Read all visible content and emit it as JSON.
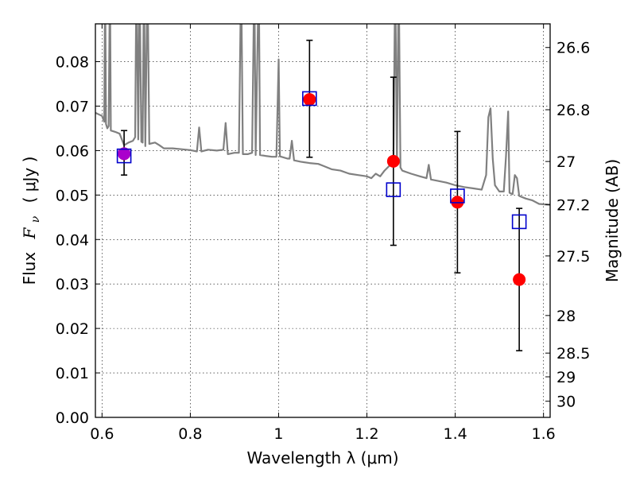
{
  "chart_data": {
    "type": "scatter",
    "xlabel": "Wavelength  λ (μm)",
    "ylabel_left_text": "Flux",
    "ylabel_left_symbol": "F",
    "ylabel_left_subscript": "ν",
    "ylabel_left_units": "( μJy )",
    "ylabel_right": "Magnitude (AB)",
    "xlim": [
      0.585,
      1.615
    ],
    "ylim": [
      0.0,
      0.0885
    ],
    "x_ticks": [
      0.6,
      0.8,
      1.0,
      1.2,
      1.4,
      1.6
    ],
    "x_tick_labels": [
      "0.6",
      "0.8",
      "1",
      "1.2",
      "1.4",
      "1.6"
    ],
    "y_ticks": [
      0.0,
      0.01,
      0.02,
      0.03,
      0.04,
      0.05,
      0.06,
      0.07,
      0.08
    ],
    "y_tick_labels": [
      "0.00",
      "0.01",
      "0.02",
      "0.03",
      "0.04",
      "0.05",
      "0.06",
      "0.07",
      "0.08"
    ],
    "right_ticks": [
      {
        "mag": 26.6,
        "label": "26.6"
      },
      {
        "mag": 26.8,
        "label": "26.8"
      },
      {
        "mag": 27.0,
        "label": "27"
      },
      {
        "mag": 27.2,
        "label": "27.2"
      },
      {
        "mag": 27.5,
        "label": "27.5"
      },
      {
        "mag": 28.0,
        "label": "28"
      },
      {
        "mag": 28.5,
        "label": "28.5"
      },
      {
        "mag": 29.0,
        "label": "29"
      },
      {
        "mag": 30.0,
        "label": "30"
      }
    ],
    "grid": true,
    "colors": {
      "observed": "#ff0000",
      "model": "#0000cc",
      "overlap": "#aa00cc",
      "spectrum": "#808080",
      "errorbar": "#000000"
    },
    "series": [
      {
        "kind": "observed_points_with_errors",
        "points": [
          {
            "x": 0.65,
            "y": 0.0593,
            "err_low": 0.0545,
            "err_high": 0.0645
          },
          {
            "x": 1.07,
            "y": 0.0715,
            "err_low": 0.0585,
            "err_high": 0.0848
          },
          {
            "x": 1.26,
            "y": 0.0576,
            "err_low": 0.0387,
            "err_high": 0.0765
          },
          {
            "x": 1.405,
            "y": 0.0484,
            "err_low": 0.0325,
            "err_high": 0.0643
          },
          {
            "x": 1.545,
            "y": 0.031,
            "err_low": 0.015,
            "err_high": 0.047
          }
        ]
      },
      {
        "kind": "model_photometry_squares",
        "points": [
          {
            "x": 0.65,
            "y": 0.0588
          },
          {
            "x": 1.07,
            "y": 0.0717
          },
          {
            "x": 1.26,
            "y": 0.0512
          },
          {
            "x": 1.405,
            "y": 0.0498
          },
          {
            "x": 1.545,
            "y": 0.044
          }
        ]
      },
      {
        "kind": "model_spectrum",
        "points": [
          [
            0.585,
            0.0685
          ],
          [
            0.6,
            0.0678
          ],
          [
            0.605,
            0.0665
          ],
          [
            0.607,
            0.1
          ],
          [
            0.609,
            0.066
          ],
          [
            0.612,
            0.065
          ],
          [
            0.615,
            0.0655
          ],
          [
            0.618,
            0.1
          ],
          [
            0.62,
            0.0645
          ],
          [
            0.63,
            0.0642
          ],
          [
            0.64,
            0.0638
          ],
          [
            0.65,
            0.0612
          ],
          [
            0.66,
            0.0618
          ],
          [
            0.67,
            0.0622
          ],
          [
            0.675,
            0.063
          ],
          [
            0.678,
            0.1
          ],
          [
            0.682,
            0.0625
          ],
          [
            0.685,
            0.1
          ],
          [
            0.689,
            0.062
          ],
          [
            0.692,
            0.0618
          ],
          [
            0.695,
            0.1
          ],
          [
            0.698,
            0.061
          ],
          [
            0.703,
            0.1
          ],
          [
            0.707,
            0.0615
          ],
          [
            0.72,
            0.0618
          ],
          [
            0.73,
            0.0612
          ],
          [
            0.74,
            0.0605
          ],
          [
            0.76,
            0.0605
          ],
          [
            0.78,
            0.0603
          ],
          [
            0.8,
            0.0601
          ],
          [
            0.815,
            0.0598
          ],
          [
            0.82,
            0.0652
          ],
          [
            0.825,
            0.0598
          ],
          [
            0.84,
            0.0602
          ],
          [
            0.86,
            0.06
          ],
          [
            0.875,
            0.0602
          ],
          [
            0.88,
            0.0662
          ],
          [
            0.885,
            0.0592
          ],
          [
            0.9,
            0.0595
          ],
          [
            0.91,
            0.0595
          ],
          [
            0.915,
            0.1
          ],
          [
            0.919,
            0.0592
          ],
          [
            0.93,
            0.0592
          ],
          [
            0.94,
            0.0595
          ],
          [
            0.945,
            0.1
          ],
          [
            0.948,
            0.059
          ],
          [
            0.955,
            0.1
          ],
          [
            0.958,
            0.059
          ],
          [
            0.97,
            0.0588
          ],
          [
            0.985,
            0.0586
          ],
          [
            0.995,
            0.0586
          ],
          [
            1.0,
            0.0805
          ],
          [
            1.003,
            0.0587
          ],
          [
            1.01,
            0.0585
          ],
          [
            1.02,
            0.0582
          ],
          [
            1.025,
            0.0582
          ],
          [
            1.03,
            0.0622
          ],
          [
            1.035,
            0.0578
          ],
          [
            1.05,
            0.0575
          ],
          [
            1.07,
            0.0572
          ],
          [
            1.09,
            0.057
          ],
          [
            1.1,
            0.0566
          ],
          [
            1.12,
            0.0558
          ],
          [
            1.14,
            0.0555
          ],
          [
            1.16,
            0.0548
          ],
          [
            1.18,
            0.0545
          ],
          [
            1.2,
            0.0542
          ],
          [
            1.21,
            0.0538
          ],
          [
            1.22,
            0.0548
          ],
          [
            1.23,
            0.0542
          ],
          [
            1.24,
            0.0555
          ],
          [
            1.25,
            0.0565
          ],
          [
            1.26,
            0.0572
          ],
          [
            1.264,
            0.1
          ],
          [
            1.268,
            0.057
          ],
          [
            1.272,
            0.1
          ],
          [
            1.276,
            0.0562
          ],
          [
            1.28,
            0.0555
          ],
          [
            1.3,
            0.0548
          ],
          [
            1.32,
            0.0542
          ],
          [
            1.335,
            0.0538
          ],
          [
            1.34,
            0.0568
          ],
          [
            1.345,
            0.0535
          ],
          [
            1.36,
            0.0532
          ],
          [
            1.38,
            0.0528
          ],
          [
            1.4,
            0.0522
          ],
          [
            1.42,
            0.0518
          ],
          [
            1.44,
            0.0515
          ],
          [
            1.46,
            0.0512
          ],
          [
            1.47,
            0.0545
          ],
          [
            1.475,
            0.0675
          ],
          [
            1.48,
            0.0695
          ],
          [
            1.485,
            0.0582
          ],
          [
            1.49,
            0.0522
          ],
          [
            1.5,
            0.0508
          ],
          [
            1.51,
            0.0508
          ],
          [
            1.515,
            0.0588
          ],
          [
            1.52,
            0.0688
          ],
          [
            1.523,
            0.0505
          ],
          [
            1.53,
            0.0502
          ],
          [
            1.535,
            0.0545
          ],
          [
            1.54,
            0.0538
          ],
          [
            1.545,
            0.0498
          ],
          [
            1.56,
            0.0492
          ],
          [
            1.575,
            0.0488
          ],
          [
            1.59,
            0.048
          ],
          [
            1.615,
            0.0478
          ]
        ]
      }
    ]
  }
}
